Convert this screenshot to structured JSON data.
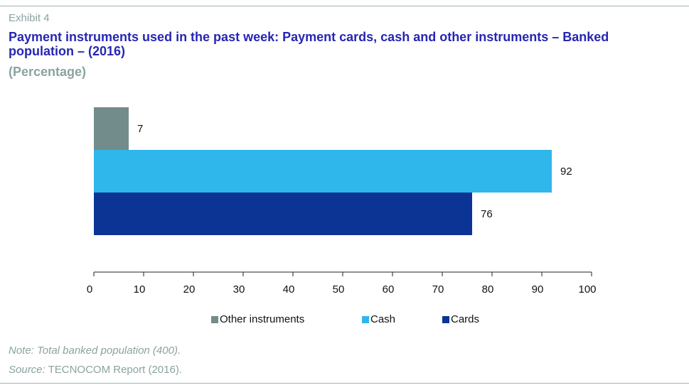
{
  "header": {
    "exhibit": "Exhibit 4",
    "title": "Payment instruments used in the past week: Payment cards, cash and other instruments – Banked population – (2016)",
    "subtitle": "(Percentage)"
  },
  "chart_data": {
    "type": "bar",
    "orientation": "horizontal",
    "xlim": [
      0,
      100
    ],
    "ticks": [
      "0",
      "10",
      "20",
      "30",
      "40",
      "50",
      "60",
      "70",
      "80",
      "90",
      "100"
    ],
    "grid": false,
    "legend_position": "bottom",
    "series": [
      {
        "name": "Other instruments",
        "value": 7,
        "color": "#728c8b"
      },
      {
        "name": "Cash",
        "value": 92,
        "color": "#2fb6ea"
      },
      {
        "name": "Cards",
        "value": 76,
        "color": "#0b3495"
      }
    ]
  },
  "footer": {
    "note": "Note: Total banked population (400).",
    "source_label": "Source:",
    "source_text": " TECNOCOM Report (2016)."
  }
}
